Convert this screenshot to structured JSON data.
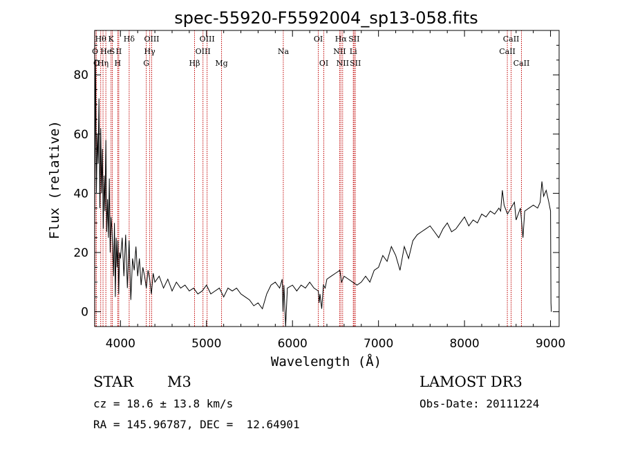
{
  "chart_data": {
    "type": "line",
    "title": "spec-55920-F5592004_sp13-058.fits",
    "xlabel": "Wavelength (Å)",
    "ylabel": "Flux (relative)",
    "xlim": [
      3700,
      9100
    ],
    "ylim": [
      -5,
      95
    ],
    "xticks": [
      4000,
      5000,
      6000,
      7000,
      8000,
      9000
    ],
    "yticks": [
      0,
      20,
      40,
      60,
      80
    ],
    "series": [
      {
        "values": [
          [
            3700,
            30
          ],
          [
            3710,
            85
          ],
          [
            3720,
            40
          ],
          [
            3730,
            60
          ],
          [
            3740,
            50
          ],
          [
            3750,
            72
          ],
          [
            3760,
            35
          ],
          [
            3770,
            62
          ],
          [
            3780,
            40
          ],
          [
            3790,
            55
          ],
          [
            3800,
            28
          ],
          [
            3810,
            46
          ],
          [
            3820,
            34
          ],
          [
            3830,
            58
          ],
          [
            3840,
            27
          ],
          [
            3850,
            38
          ],
          [
            3860,
            25
          ],
          [
            3870,
            45
          ],
          [
            3880,
            20
          ],
          [
            3890,
            32
          ],
          [
            3900,
            28
          ],
          [
            3910,
            22
          ],
          [
            3920,
            12
          ],
          [
            3930,
            30
          ],
          [
            3940,
            5
          ],
          [
            3950,
            25
          ],
          [
            3960,
            15
          ],
          [
            3970,
            24
          ],
          [
            3980,
            6
          ],
          [
            3990,
            20
          ],
          [
            4000,
            18
          ],
          [
            4020,
            25
          ],
          [
            4040,
            12
          ],
          [
            4060,
            26
          ],
          [
            4080,
            8
          ],
          [
            4100,
            24
          ],
          [
            4120,
            4
          ],
          [
            4140,
            18
          ],
          [
            4160,
            14
          ],
          [
            4180,
            22
          ],
          [
            4200,
            12
          ],
          [
            4220,
            18
          ],
          [
            4240,
            9
          ],
          [
            4260,
            15
          ],
          [
            4280,
            12
          ],
          [
            4300,
            8
          ],
          [
            4320,
            14
          ],
          [
            4340,
            11
          ],
          [
            4360,
            6
          ],
          [
            4380,
            13
          ],
          [
            4400,
            10
          ],
          [
            4450,
            12
          ],
          [
            4500,
            8
          ],
          [
            4550,
            11
          ],
          [
            4600,
            7
          ],
          [
            4650,
            10
          ],
          [
            4700,
            8
          ],
          [
            4750,
            9
          ],
          [
            4800,
            7
          ],
          [
            4850,
            8
          ],
          [
            4900,
            6
          ],
          [
            4950,
            7
          ],
          [
            5000,
            9
          ],
          [
            5050,
            6
          ],
          [
            5100,
            7
          ],
          [
            5150,
            8
          ],
          [
            5200,
            5
          ],
          [
            5250,
            8
          ],
          [
            5300,
            7
          ],
          [
            5350,
            8
          ],
          [
            5400,
            6
          ],
          [
            5450,
            5
          ],
          [
            5500,
            4
          ],
          [
            5550,
            2
          ],
          [
            5600,
            3
          ],
          [
            5650,
            1
          ],
          [
            5700,
            6
          ],
          [
            5750,
            9
          ],
          [
            5800,
            10
          ],
          [
            5850,
            8
          ],
          [
            5880,
            11
          ],
          [
            5890,
            0
          ],
          [
            5900,
            9
          ],
          [
            5920,
            -5
          ],
          [
            5940,
            8
          ],
          [
            6000,
            9
          ],
          [
            6050,
            7
          ],
          [
            6100,
            9
          ],
          [
            6150,
            8
          ],
          [
            6200,
            10
          ],
          [
            6250,
            8
          ],
          [
            6300,
            7
          ],
          [
            6310,
            3
          ],
          [
            6320,
            6
          ],
          [
            6340,
            1
          ],
          [
            6360,
            9
          ],
          [
            6380,
            8
          ],
          [
            6400,
            11
          ],
          [
            6450,
            12
          ],
          [
            6500,
            13
          ],
          [
            6550,
            14
          ],
          [
            6570,
            10
          ],
          [
            6600,
            12
          ],
          [
            6650,
            11
          ],
          [
            6700,
            10
          ],
          [
            6750,
            9
          ],
          [
            6800,
            10
          ],
          [
            6850,
            12
          ],
          [
            6900,
            10
          ],
          [
            6950,
            14
          ],
          [
            7000,
            15
          ],
          [
            7050,
            19
          ],
          [
            7100,
            17
          ],
          [
            7150,
            22
          ],
          [
            7200,
            19
          ],
          [
            7250,
            14
          ],
          [
            7300,
            22
          ],
          [
            7350,
            18
          ],
          [
            7400,
            24
          ],
          [
            7450,
            26
          ],
          [
            7500,
            27
          ],
          [
            7550,
            28
          ],
          [
            7600,
            29
          ],
          [
            7650,
            27
          ],
          [
            7700,
            25
          ],
          [
            7750,
            28
          ],
          [
            7800,
            30
          ],
          [
            7850,
            27
          ],
          [
            7900,
            28
          ],
          [
            7950,
            30
          ],
          [
            8000,
            32
          ],
          [
            8050,
            29
          ],
          [
            8100,
            31
          ],
          [
            8150,
            30
          ],
          [
            8200,
            33
          ],
          [
            8250,
            32
          ],
          [
            8300,
            34
          ],
          [
            8350,
            33
          ],
          [
            8400,
            35
          ],
          [
            8420,
            34
          ],
          [
            8440,
            41
          ],
          [
            8460,
            36
          ],
          [
            8500,
            33
          ],
          [
            8540,
            35
          ],
          [
            8580,
            37
          ],
          [
            8600,
            31
          ],
          [
            8650,
            35
          ],
          [
            8680,
            25
          ],
          [
            8700,
            34
          ],
          [
            8750,
            35
          ],
          [
            8800,
            36
          ],
          [
            8850,
            35
          ],
          [
            8880,
            37
          ],
          [
            8900,
            44
          ],
          [
            8920,
            39
          ],
          [
            8950,
            41
          ],
          [
            8980,
            37
          ],
          [
            9000,
            34
          ],
          [
            9005,
            3
          ],
          [
            9010,
            0
          ]
        ]
      }
    ],
    "line_markers": [
      {
        "x": 3705,
        "label": "O",
        "row": 1
      },
      {
        "x": 3720,
        "label": "O",
        "row": 2
      },
      {
        "x": 3770,
        "label": "Hθ",
        "row": 0
      },
      {
        "x": 3797,
        "label": "Hη",
        "row": 2
      },
      {
        "x": 3830,
        "label": "He",
        "row": 1
      },
      {
        "x": 3890,
        "label": "K",
        "row": 0
      },
      {
        "x": 3905,
        "label": "S",
        "row": 1
      },
      {
        "x": 3968,
        "label": "H",
        "row": 2
      },
      {
        "x": 3980,
        "label": "II",
        "row": 1
      },
      {
        "x": 4101,
        "label": "Hδ",
        "row": 0
      },
      {
        "x": 4300,
        "label": "G",
        "row": 2
      },
      {
        "x": 4340,
        "label": "Hγ",
        "row": 1
      },
      {
        "x": 4363,
        "label": "OIII",
        "row": 0
      },
      {
        "x": 4861,
        "label": "Hβ",
        "row": 2
      },
      {
        "x": 4959,
        "label": "OIII",
        "row": 1
      },
      {
        "x": 5007,
        "label": "OIII",
        "row": 0
      },
      {
        "x": 5175,
        "label": "Mg",
        "row": 2
      },
      {
        "x": 5893,
        "label": "Na",
        "row": 1
      },
      {
        "x": 6300,
        "label": "OI",
        "row": 0
      },
      {
        "x": 6364,
        "label": "OI",
        "row": 2
      },
      {
        "x": 6548,
        "label": "NII",
        "row": 1
      },
      {
        "x": 6563,
        "label": "Hα",
        "row": 0
      },
      {
        "x": 6583,
        "label": "NII",
        "row": 2
      },
      {
        "x": 6707,
        "label": "Li",
        "row": 1
      },
      {
        "x": 6716,
        "label": "SII",
        "row": 0
      },
      {
        "x": 6731,
        "label": "SII",
        "row": 2
      },
      {
        "x": 8498,
        "label": "CaII",
        "row": 1
      },
      {
        "x": 8542,
        "label": "CaII",
        "row": 0
      },
      {
        "x": 8662,
        "label": "CaII",
        "row": 2
      }
    ]
  },
  "info": {
    "class": "STAR",
    "subclass": "M3",
    "survey": "LAMOST DR3",
    "redshift": "cz = 18.6 ± 13.8 km/s",
    "obs_date": "Obs-Date: 20111224",
    "coords": "RA = 145.96787, DEC =  12.64901"
  },
  "colors": {
    "spectrum": "#000000",
    "marker": "#c00000"
  }
}
